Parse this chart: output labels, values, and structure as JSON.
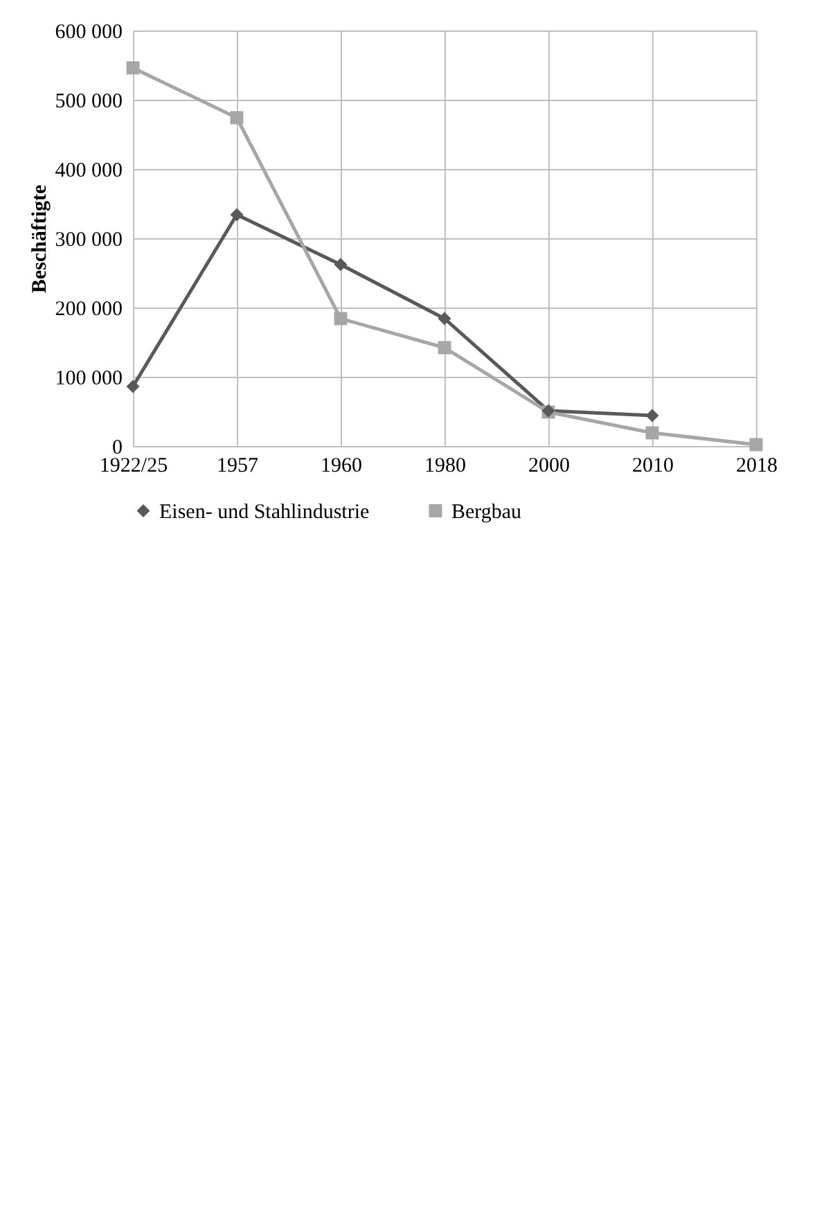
{
  "chart_data": {
    "type": "line",
    "ylabel": "Beschäftigte",
    "categories": [
      "1922/25",
      "1957",
      "1960",
      "1980",
      "2000",
      "2010",
      "2018"
    ],
    "series": [
      {
        "name": "Eisen- und Stahlindustrie",
        "color": "#595959",
        "marker": "diamond",
        "values": [
          86000,
          334000,
          262000,
          184000,
          51000,
          44000,
          null
        ]
      },
      {
        "name": "Bergbau",
        "color": "#a6a6a6",
        "marker": "square",
        "values": [
          546000,
          474000,
          184000,
          142000,
          49000,
          19000,
          2000
        ]
      }
    ],
    "ylim": [
      0,
      600000
    ],
    "yticks": [
      {
        "value": 0,
        "label": "0"
      },
      {
        "value": 100000,
        "label": "100 000"
      },
      {
        "value": 200000,
        "label": "200 000"
      },
      {
        "value": 300000,
        "label": "300 000"
      },
      {
        "value": 400000,
        "label": "400 000"
      },
      {
        "value": 500000,
        "label": "500 000"
      },
      {
        "value": 600000,
        "label": "600 000"
      }
    ],
    "grid": true,
    "legend": "bottom",
    "line_style": "solid"
  }
}
